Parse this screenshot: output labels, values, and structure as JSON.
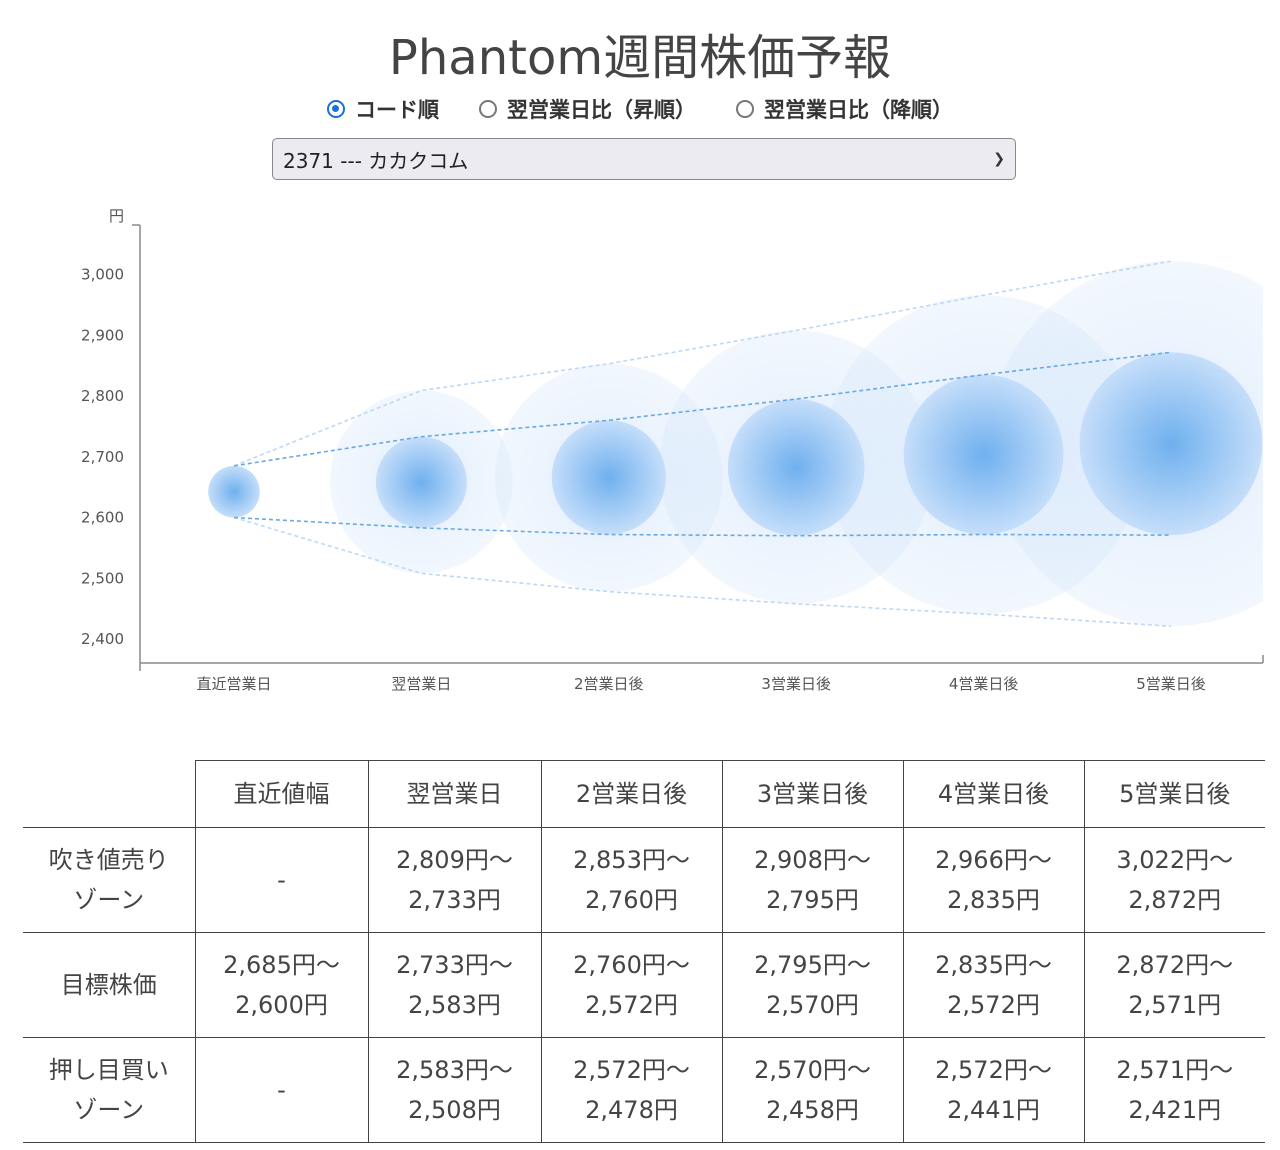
{
  "page": {
    "title": "Phantom週間株価予報"
  },
  "sort": {
    "options": [
      {
        "label": "コード順",
        "checked": true
      },
      {
        "label": "翌営業日比（昇順）",
        "checked": false
      },
      {
        "label": "翌営業日比（降順）",
        "checked": false
      }
    ]
  },
  "stock_select": {
    "selected": "2371 --- カカクコム"
  },
  "colors": {
    "accent": "#1a6fdc",
    "bubble": "#7fb8f0",
    "line": "#5a9fe0"
  },
  "chart_data": {
    "type": "bubble-range",
    "ylabel": "円",
    "ylim": [
      2360,
      3080
    ],
    "yticks": [
      2400,
      2500,
      2600,
      2700,
      2800,
      2900,
      3000
    ],
    "ytick_labels": [
      "2,400",
      "2,500",
      "2,600",
      "2,700",
      "2,800",
      "2,900",
      "3,000"
    ],
    "categories": [
      "直近営業日",
      "翌営業日",
      "2営業日後",
      "3営業日後",
      "4営業日後",
      "5営業日後"
    ],
    "target_high": [
      2685,
      2733,
      2760,
      2795,
      2835,
      2872
    ],
    "target_low": [
      2600,
      2583,
      2572,
      2570,
      2572,
      2571
    ],
    "outer_high": [
      2685,
      2809,
      2853,
      2908,
      2966,
      3022
    ],
    "outer_low": [
      2600,
      2508,
      2478,
      2458,
      2441,
      2421
    ]
  },
  "table": {
    "headers": [
      "",
      "直近値幅",
      "翌営業日",
      "2営業日後",
      "3営業日後",
      "4営業日後",
      "5営業日後"
    ],
    "rows": [
      {
        "label": [
          "吹き値売り",
          "ゾーン"
        ],
        "cells": [
          [
            "-"
          ],
          [
            "2,809円〜",
            "2,733円"
          ],
          [
            "2,853円〜",
            "2,760円"
          ],
          [
            "2,908円〜",
            "2,795円"
          ],
          [
            "2,966円〜",
            "2,835円"
          ],
          [
            "3,022円〜",
            "2,872円"
          ]
        ]
      },
      {
        "label": [
          "目標株価"
        ],
        "cells": [
          [
            "2,685円〜",
            "2,600円"
          ],
          [
            "2,733円〜",
            "2,583円"
          ],
          [
            "2,760円〜",
            "2,572円"
          ],
          [
            "2,795円〜",
            "2,570円"
          ],
          [
            "2,835円〜",
            "2,572円"
          ],
          [
            "2,872円〜",
            "2,571円"
          ]
        ]
      },
      {
        "label": [
          "押し目買い",
          "ゾーン"
        ],
        "cells": [
          [
            "-"
          ],
          [
            "2,583円〜",
            "2,508円"
          ],
          [
            "2,572円〜",
            "2,478円"
          ],
          [
            "2,570円〜",
            "2,458円"
          ],
          [
            "2,572円〜",
            "2,441円"
          ],
          [
            "2,571円〜",
            "2,421円"
          ]
        ]
      }
    ]
  }
}
